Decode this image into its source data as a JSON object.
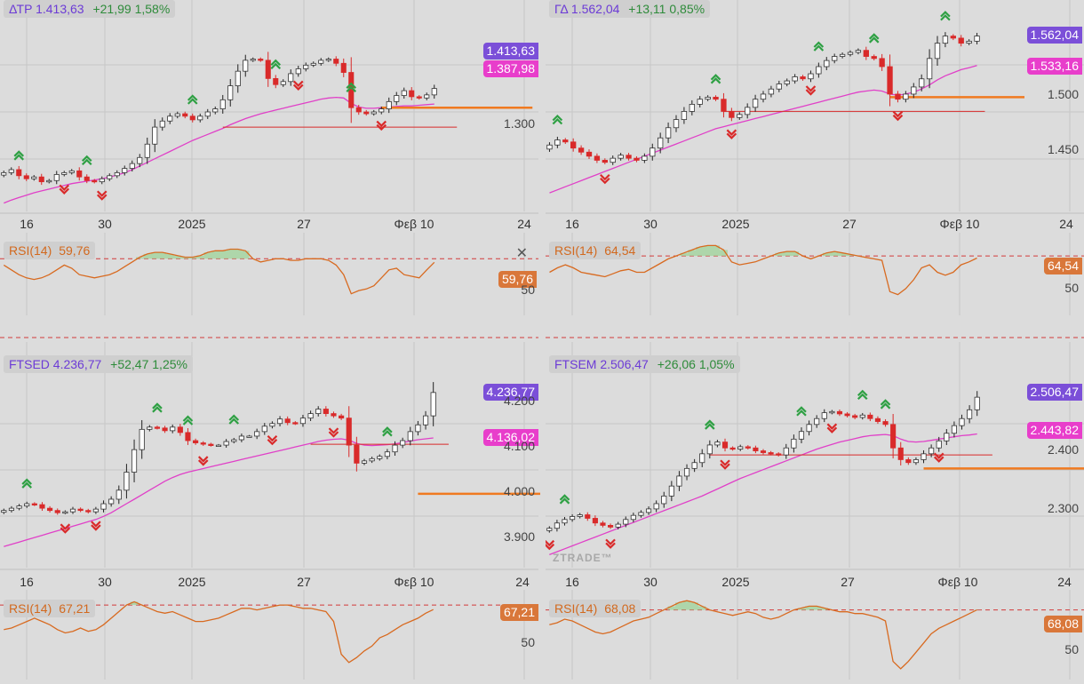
{
  "colors": {
    "up": "#ffffff",
    "down": "#d92a2a",
    "ma": "#e040c8",
    "rsi": "#d86a20",
    "support": "#f07a20",
    "level": "#d92a2a",
    "arrow_up": "#2ea043",
    "arrow_down": "#d92a2a",
    "grid": "#c6c6c6"
  },
  "x_labels": [
    "16",
    "30",
    "2025",
    "27",
    "Φεβ 10",
    "24"
  ],
  "watermark": "ZTRADE™",
  "panels": [
    {
      "name": "ΔΤΡ",
      "value": "1.413,63",
      "change": "+21,99 1,58%",
      "last_tag": "1.413,63",
      "ma_tag": "1.387,98",
      "yticks": [
        "1.300"
      ],
      "ymin": 1220,
      "ymax": 1530,
      "rsi_label": "RSI(14)",
      "rsi_value": "59,76",
      "rsi_tag": "59,76",
      "rsi_ticks": [
        "50"
      ],
      "candles": [
        1275,
        1280,
        1270,
        1265,
        1268,
        1260,
        1262,
        1272,
        1275,
        1278,
        1268,
        1262,
        1260,
        1265,
        1270,
        1275,
        1282,
        1290,
        1300,
        1322,
        1350,
        1360,
        1368,
        1372,
        1368,
        1362,
        1368,
        1375,
        1380,
        1395,
        1418,
        1442,
        1460,
        1462,
        1460,
        1430,
        1420,
        1425,
        1438,
        1446,
        1452,
        1455,
        1460,
        1462,
        1455,
        1440,
        1382,
        1375,
        1372,
        1375,
        1380,
        1392,
        1402,
        1410,
        1400,
        1398,
        1403,
        1413.63
      ],
      "ma": [
        1225,
        1230,
        1234,
        1238,
        1242,
        1245,
        1248,
        1251,
        1254,
        1257,
        1259,
        1261,
        1263,
        1265,
        1268,
        1271,
        1275,
        1280,
        1286,
        1292,
        1298,
        1304,
        1310,
        1316,
        1322,
        1328,
        1333,
        1338,
        1343,
        1348,
        1354,
        1359,
        1364,
        1368,
        1372,
        1375,
        1378,
        1381,
        1384,
        1387,
        1390,
        1393,
        1396,
        1398,
        1399,
        1398,
        1389,
        1383,
        1381,
        1381,
        1382,
        1383,
        1384,
        1385,
        1385,
        1386,
        1387,
        1387.98
      ],
      "rsi": [
        58,
        55,
        52,
        50,
        49,
        50,
        52,
        55,
        58,
        56,
        52,
        51,
        50,
        51,
        52,
        54,
        57,
        60,
        63,
        65,
        66,
        66,
        65,
        64,
        63,
        63,
        64,
        66,
        67,
        67,
        68,
        68,
        67,
        62,
        60,
        61,
        62,
        62,
        61,
        61,
        62,
        62,
        62,
        61,
        58,
        52,
        40,
        42,
        43,
        45,
        50,
        55,
        56,
        52,
        51,
        50,
        55,
        59.76
      ],
      "rsi_max": 75,
      "rsi_min": 32,
      "rsi_line": 62,
      "rsi_low": 32,
      "resist": {
        "y": 1350,
        "from": 29,
        "to": 60
      },
      "support": {
        "y": 1382,
        "from": 50,
        "to": 70
      },
      "arrows_up": [
        2,
        11,
        25,
        36,
        46
      ],
      "arrows_down": [
        8,
        13,
        39,
        50
      ]
    },
    {
      "name": "ΓΔ",
      "value": "1.562,04",
      "change": "+13,11 0,85%",
      "last_tag": "1.562,04",
      "ma_tag": "1.533,16",
      "yticks": [
        "1.500",
        "1.450"
      ],
      "ymin": 1395,
      "ymax": 1580,
      "rsi_label": "RSI(14)",
      "rsi_value": "64,54",
      "rsi_tag": "64,54",
      "rsi_ticks": [
        "50"
      ],
      "candles": [
        1455,
        1460,
        1458,
        1452,
        1448,
        1444,
        1440,
        1438,
        1442,
        1445,
        1442,
        1440,
        1444,
        1452,
        1462,
        1472,
        1480,
        1488,
        1495,
        1500,
        1502,
        1500,
        1488,
        1482,
        1485,
        1492,
        1500,
        1505,
        1510,
        1515,
        1518,
        1522,
        1520,
        1525,
        1532,
        1538,
        1542,
        1544,
        1546,
        1548,
        1542,
        1540,
        1532,
        1505,
        1500,
        1505,
        1512,
        1520,
        1540,
        1555,
        1562,
        1560,
        1555,
        1557,
        1562.04
      ],
      "ma": [
        1408,
        1411,
        1414,
        1417,
        1420,
        1423,
        1426,
        1429,
        1432,
        1435,
        1438,
        1441,
        1444,
        1447,
        1450,
        1453,
        1456,
        1459,
        1462,
        1465,
        1468,
        1471,
        1473,
        1475,
        1477,
        1479,
        1481,
        1483,
        1485,
        1487,
        1489,
        1491,
        1493,
        1495,
        1497,
        1499,
        1501,
        1503,
        1505,
        1507,
        1508,
        1509,
        1508,
        1505,
        1504,
        1505,
        1507,
        1510,
        1514,
        1519,
        1523,
        1526,
        1529,
        1531,
        1533.16
      ],
      "rsi": [
        55,
        58,
        60,
        58,
        55,
        54,
        53,
        52,
        54,
        56,
        57,
        55,
        55,
        58,
        61,
        64,
        66,
        68,
        70,
        72,
        73,
        73,
        70,
        62,
        60,
        61,
        62,
        64,
        66,
        68,
        69,
        69,
        66,
        64,
        66,
        68,
        69,
        68,
        67,
        66,
        65,
        64,
        63,
        42,
        40,
        44,
        50,
        58,
        60,
        55,
        53,
        55,
        60,
        62,
        64.54
      ],
      "rsi_max": 78,
      "rsi_min": 32,
      "rsi_line": 66,
      "rsi_low": 32,
      "resist": {
        "y": 1488,
        "from": 22,
        "to": 55
      },
      "support": {
        "y": 1502,
        "from": 43,
        "to": 60
      },
      "arrows_up": [
        1,
        21,
        34,
        41,
        50
      ],
      "arrows_down": [
        7,
        23,
        33,
        44
      ]
    },
    {
      "name": "FTSED",
      "value": "4.236,77",
      "change": "+52,47 1,25%",
      "last_tag": "4.236,77",
      "ma_tag": "4.136,02",
      "yticks": [
        "4.200",
        "4.100",
        "4.000",
        "3.900"
      ],
      "ymin": 3860,
      "ymax": 4270,
      "rsi_label": "RSI(14)",
      "rsi_value": "67,21",
      "rsi_tag": "67,21",
      "rsi_ticks": [
        "50"
      ],
      "candles": [
        3975,
        3980,
        3985,
        3990,
        3988,
        3980,
        3975,
        3970,
        3972,
        3978,
        3975,
        3972,
        3978,
        3990,
        4000,
        4020,
        4060,
        4110,
        4155,
        4160,
        4158,
        4152,
        4160,
        4148,
        4130,
        4125,
        4122,
        4120,
        4120,
        4128,
        4132,
        4140,
        4140,
        4150,
        4162,
        4168,
        4178,
        4170,
        4168,
        4180,
        4190,
        4200,
        4190,
        4185,
        4180,
        4120,
        4080,
        4085,
        4090,
        4095,
        4105,
        4120,
        4130,
        4150,
        4165,
        4185,
        4236.77
      ],
      "ma": [
        3895,
        3900,
        3905,
        3910,
        3915,
        3920,
        3925,
        3930,
        3935,
        3940,
        3945,
        3950,
        3955,
        3962,
        3970,
        3980,
        3990,
        4000,
        4010,
        4020,
        4030,
        4040,
        4048,
        4055,
        4060,
        4064,
        4068,
        4072,
        4076,
        4080,
        4084,
        4088,
        4092,
        4096,
        4100,
        4104,
        4108,
        4112,
        4116,
        4120,
        4124,
        4128,
        4131,
        4133,
        4134,
        4131,
        4124,
        4120,
        4119,
        4120,
        4121,
        4123,
        4126,
        4129,
        4132,
        4134,
        4136.02
      ],
      "rsi": [
        55,
        56,
        58,
        60,
        62,
        60,
        58,
        55,
        53,
        54,
        56,
        54,
        55,
        58,
        62,
        66,
        70,
        72,
        70,
        68,
        66,
        65,
        66,
        64,
        62,
        60,
        60,
        61,
        62,
        64,
        66,
        68,
        68,
        67,
        68,
        69,
        70,
        70,
        69,
        68,
        68,
        67,
        66,
        60,
        40,
        35,
        38,
        42,
        45,
        50,
        52,
        55,
        58,
        60,
        62,
        65,
        67.21
      ],
      "rsi_max": 76,
      "rsi_min": 30,
      "rsi_line": 70,
      "rsi_low": 30,
      "resist": {
        "y": 4122,
        "from": 40,
        "to": 58
      },
      "support": {
        "y": 4012,
        "from": 54,
        "to": 76
      },
      "arrows_up": [
        3,
        20,
        24,
        30,
        50
      ],
      "arrows_down": [
        8,
        12,
        26,
        35,
        43,
        57
      ],
      "arrows_orange_down": [
        57
      ],
      "arrows_green_up": [
        68
      ]
    },
    {
      "name": "FTSEM",
      "value": "2.506,47",
      "change": "+26,06 1,05%",
      "last_tag": "2.506,47",
      "ma_tag": "2.443,82",
      "yticks": [
        "2.400",
        "2.300"
      ],
      "ymin": 2225,
      "ymax": 2540,
      "rsi_label": "RSI(14)",
      "rsi_value": "68,08",
      "rsi_tag": "68,08",
      "rsi_ticks": [
        "50"
      ],
      "candles": [
        2283,
        2292,
        2298,
        2303,
        2306,
        2300,
        2292,
        2288,
        2285,
        2290,
        2298,
        2305,
        2310,
        2316,
        2325,
        2338,
        2355,
        2372,
        2385,
        2395,
        2410,
        2425,
        2430,
        2420,
        2418,
        2422,
        2420,
        2415,
        2412,
        2410,
        2408,
        2420,
        2435,
        2448,
        2460,
        2470,
        2480,
        2482,
        2478,
        2475,
        2472,
        2476,
        2470,
        2465,
        2460,
        2420,
        2400,
        2395,
        2400,
        2410,
        2420,
        2432,
        2445,
        2458,
        2470,
        2485,
        2506.47
      ],
      "ma": [
        2238,
        2243,
        2248,
        2253,
        2258,
        2263,
        2268,
        2273,
        2278,
        2283,
        2288,
        2293,
        2298,
        2303,
        2308,
        2313,
        2318,
        2323,
        2328,
        2333,
        2338,
        2344,
        2350,
        2356,
        2362,
        2368,
        2373,
        2378,
        2383,
        2388,
        2393,
        2398,
        2403,
        2408,
        2413,
        2418,
        2422,
        2426,
        2430,
        2433,
        2436,
        2439,
        2441,
        2442,
        2443,
        2441,
        2435,
        2431,
        2430,
        2431,
        2433,
        2435,
        2437,
        2439,
        2441,
        2442,
        2443.82
      ],
      "rsi": [
        60,
        61,
        63,
        62,
        60,
        58,
        56,
        55,
        56,
        58,
        60,
        62,
        63,
        64,
        66,
        68,
        70,
        72,
        73,
        72,
        70,
        68,
        67,
        66,
        65,
        66,
        67,
        66,
        64,
        63,
        64,
        66,
        68,
        69,
        70,
        70,
        69,
        68,
        67,
        67,
        66,
        66,
        65,
        64,
        62,
        40,
        36,
        40,
        45,
        50,
        55,
        58,
        60,
        62,
        64,
        66,
        68.08
      ],
      "rsi_max": 76,
      "rsi_min": 35,
      "rsi_line": 68,
      "rsi_low": 35,
      "resist": {
        "y": 2408,
        "from": 21,
        "to": 58
      },
      "support": {
        "y": 2385,
        "from": 49,
        "to": 76
      },
      "arrows_up": [
        2,
        21,
        33,
        41,
        44
      ],
      "arrows_down": [
        0,
        8,
        23,
        37,
        51
      ],
      "arrows_orange_down": [
        51
      ],
      "arrows_green_up": [
        62
      ]
    }
  ]
}
